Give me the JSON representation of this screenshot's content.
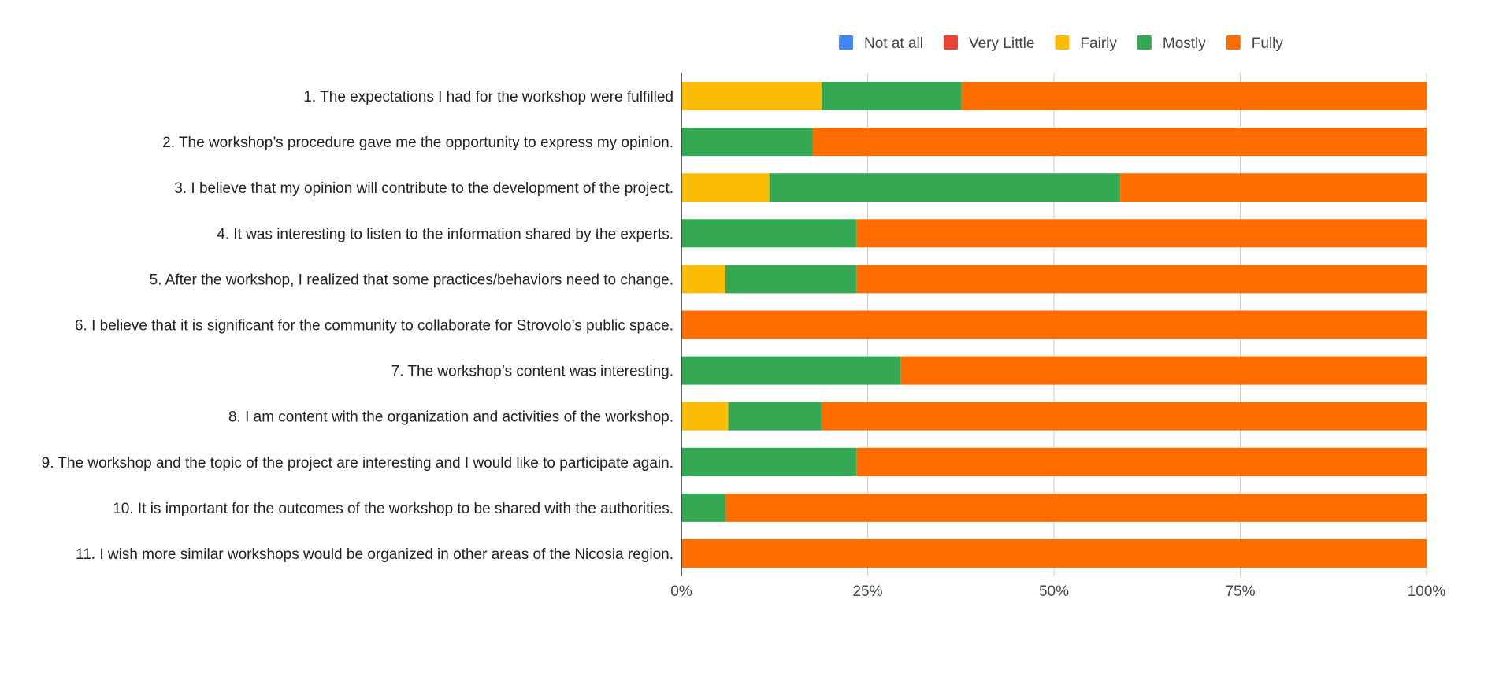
{
  "chart_data": {
    "type": "bar",
    "orientation": "horizontal",
    "stacked": "percent",
    "title": "",
    "xlabel": "",
    "ylabel": "",
    "xlim": [
      0,
      100
    ],
    "x_ticks": [
      "0%",
      "25%",
      "50%",
      "75%",
      "100%"
    ],
    "grid": true,
    "legend_position": "top",
    "categories": [
      "1. The expectations I had for the workshop were fulfilled",
      "2. The workshop’s procedure gave me the opportunity to express my opinion.",
      "3. I believe that my opinion will contribute to the development of the project.",
      "4. It was interesting to listen to the information shared by the experts.",
      "5. After the workshop, I realized that some practices/behaviors need to change.",
      "6. I believe that it is significant for the community to collaborate for Strovolo’s public space.",
      "7. The workshop’s content was interesting.",
      "8. I am content with the organization and activities of the workshop.",
      "9. The workshop and the topic of the project are interesting and I would like to participate again.",
      "10. It is important for the outcomes of the workshop to be shared with the authorities.",
      "11. I wish more similar workshops would be organized in other areas of the Nicosia region."
    ],
    "series": [
      {
        "name": "Not at all",
        "color": "#4285F4",
        "values": [
          0,
          0,
          0,
          0,
          0,
          0,
          0,
          0,
          0,
          0,
          0
        ]
      },
      {
        "name": "Very Little",
        "color": "#EA4335",
        "values": [
          0,
          0,
          0,
          0,
          0,
          0,
          0,
          0,
          0,
          0,
          0
        ]
      },
      {
        "name": "Fairly",
        "color": "#FBBC04",
        "values": [
          18.8,
          0,
          11.8,
          0,
          5.9,
          0,
          0,
          6.3,
          0,
          0,
          0
        ]
      },
      {
        "name": "Mostly",
        "color": "#34A853",
        "values": [
          18.8,
          17.6,
          47.1,
          23.5,
          17.6,
          0,
          29.4,
          12.5,
          23.5,
          5.9,
          0
        ]
      },
      {
        "name": "Fully",
        "color": "#FF6D01",
        "values": [
          62.4,
          82.4,
          41.1,
          76.5,
          76.5,
          100,
          70.6,
          81.2,
          76.5,
          94.1,
          100
        ]
      }
    ]
  }
}
